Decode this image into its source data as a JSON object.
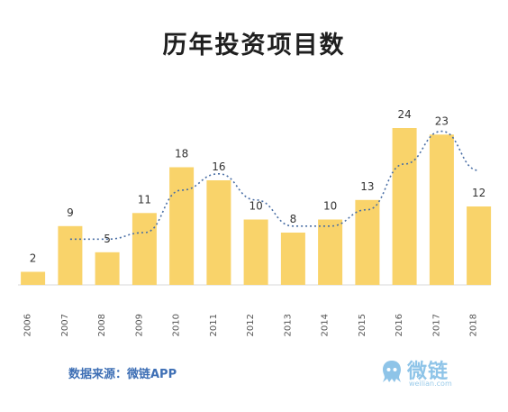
{
  "chart_data": {
    "type": "bar",
    "title": "历年投资项目数",
    "categories": [
      "2006",
      "2007",
      "2008",
      "2009",
      "2010",
      "2011",
      "2012",
      "2013",
      "2014",
      "2015",
      "2016",
      "2017",
      "2018"
    ],
    "values": [
      2,
      9,
      5,
      11,
      18,
      16,
      10,
      8,
      10,
      13,
      24,
      23,
      12
    ],
    "trend_line": {
      "style": "dotted",
      "x": [
        "2007",
        "2008",
        "2009",
        "2010",
        "2011",
        "2012",
        "2013",
        "2014",
        "2015",
        "2016",
        "2017",
        "2018"
      ],
      "values": [
        7,
        7,
        8,
        14.5,
        17,
        13,
        9,
        9,
        11.5,
        18.5,
        23.5,
        17.5
      ]
    },
    "ylim": [
      0,
      26
    ],
    "grid": false,
    "xlabel": "",
    "ylabel": "",
    "colors": {
      "bar": "#F9D36A",
      "trend": "#4A6FA5"
    }
  },
  "source_note": "数据来源：微链APP",
  "brand": {
    "name": "微链",
    "url": "weilian.com",
    "logo_icon": "octopus-logo-icon"
  }
}
